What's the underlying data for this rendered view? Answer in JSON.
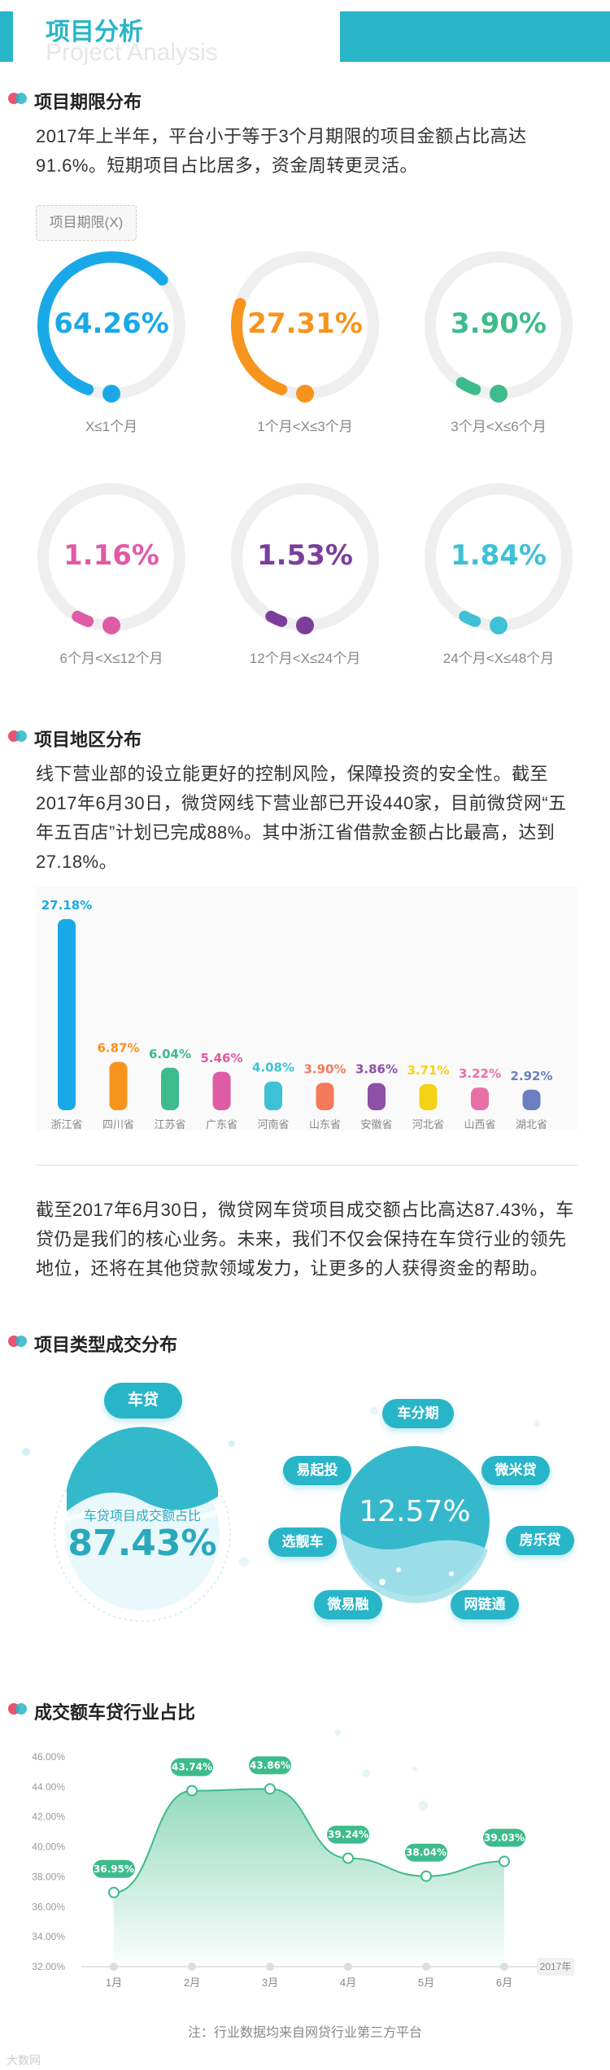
{
  "header": {
    "title": "项目分析",
    "subtitle": "Project Analysis"
  },
  "section1": {
    "title": "项目期限分布",
    "desc": "2017年上半年，平台小于等于3个月期限的项目金额占比高达91.6%。短期项目占比居多，资金周转更灵活。",
    "tag": "项目期限(X)",
    "rings": [
      {
        "value": "64.26%",
        "pct": 64.26,
        "label": "X≤1个月",
        "color": "#1aa9e8"
      },
      {
        "value": "27.31%",
        "pct": 27.31,
        "label": "1个月<X≤3个月",
        "color": "#f7941d"
      },
      {
        "value": "3.90%",
        "pct": 3.9,
        "label": "3个月<X≤6个月",
        "color": "#3dbb8c"
      },
      {
        "value": "1.16%",
        "pct": 1.16,
        "label": "6个月<X≤12个月",
        "color": "#df5ba5"
      },
      {
        "value": "1.53%",
        "pct": 1.53,
        "label": "12个月<X≤24个月",
        "color": "#7b3f9b"
      },
      {
        "value": "1.84%",
        "pct": 1.84,
        "label": "24个月<X≤48个月",
        "color": "#3ec1d4"
      }
    ]
  },
  "section2": {
    "title": "项目地区分布",
    "desc": "线下营业部的设立能更好的控制风险，保障投资的安全性。截至2017年6月30日，微贷网线下营业部已开设440家，目前微贷网“五年五百店”计划已完成88%。其中浙江省借款金额占比最高，达到27.18%。"
  },
  "section3_intro": "截至2017年6月30日，微贷网车贷项目成交额占比高达87.43%，车贷仍是我们的核心业务。未来，我们不仅会保持在车贷行业的领先地位，还将在其他贷款领域发力，让更多的人获得资金的帮助。",
  "section3": {
    "title": "项目类型成交分布",
    "car_pill": "车贷",
    "car_caption": "车贷项目成交额占比",
    "car_value": "87.43%",
    "other_value": "12.57%",
    "others": [
      "车分期",
      "易起投",
      "微米贷",
      "选靓车",
      "房乐贷",
      "微易融",
      "网链通"
    ]
  },
  "section4": {
    "title": "成交额车贷行业占比"
  },
  "footer": {
    "note": "注：行业数据均来自网贷行业第三方平台",
    "watermark": "大数网"
  },
  "chart_data": [
    {
      "type": "bar",
      "categories": [
        "浙江省",
        "四川省",
        "江苏省",
        "广东省",
        "河南省",
        "山东省",
        "安徽省",
        "河北省",
        "山西省",
        "湖北省"
      ],
      "values": [
        27.18,
        6.87,
        6.04,
        5.46,
        4.08,
        3.9,
        3.86,
        3.71,
        3.22,
        2.92
      ],
      "labels": [
        "27.18%",
        "6.87%",
        "6.04%",
        "5.46%",
        "4.08%",
        "3.90%",
        "3.86%",
        "3.71%",
        "3.22%",
        "2.92%"
      ],
      "colors": [
        "#1aa9e8",
        "#f7941d",
        "#3dbb8c",
        "#df5ba5",
        "#3ec1d4",
        "#f37b5a",
        "#8e4fa5",
        "#f5d215",
        "#e970a5",
        "#6c7fc0"
      ]
    },
    {
      "type": "line",
      "x": [
        "1月",
        "2月",
        "3月",
        "4月",
        "5月",
        "6月"
      ],
      "values": [
        36.95,
        43.74,
        43.86,
        39.24,
        38.04,
        39.03
      ],
      "labels": [
        "36.95%",
        "43.74%",
        "43.86%",
        "39.24%",
        "38.04%",
        "39.03%"
      ],
      "yticks": [
        "32.00%",
        "34.00%",
        "36.00%",
        "38.00%",
        "40.00%",
        "42.00%",
        "44.00%",
        "46.00%"
      ],
      "ylim": [
        32,
        46
      ],
      "xunit": "2017年",
      "color": "#3dbb8c"
    }
  ]
}
